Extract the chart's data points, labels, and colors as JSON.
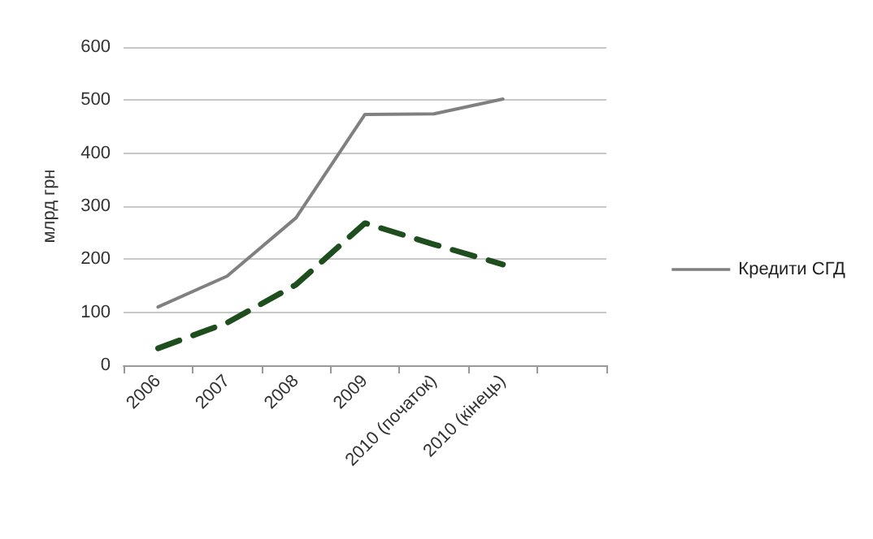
{
  "chart_data": {
    "type": "line",
    "ylabel": "млрд грн",
    "categories": [
      "2006",
      "2007",
      "2008",
      "2009",
      "2010 (початок)",
      "2010 (кінець)",
      null
    ],
    "series": [
      {
        "name": "Кредити СГД",
        "color": "#808080",
        "values": [
          110,
          168,
          278,
          473,
          474,
          502,
          null
        ],
        "line_style": "solid"
      },
      {
        "color": "#1e4d1e",
        "values": [
          32,
          80,
          152,
          268,
          228,
          190,
          null
        ],
        "line_style": "dashed"
      }
    ],
    "ylim": [
      0,
      600
    ],
    "yticks": [
      0,
      100,
      200,
      300,
      400,
      500,
      600
    ],
    "grid": "y",
    "legend": "right",
    "marker": "none"
  }
}
